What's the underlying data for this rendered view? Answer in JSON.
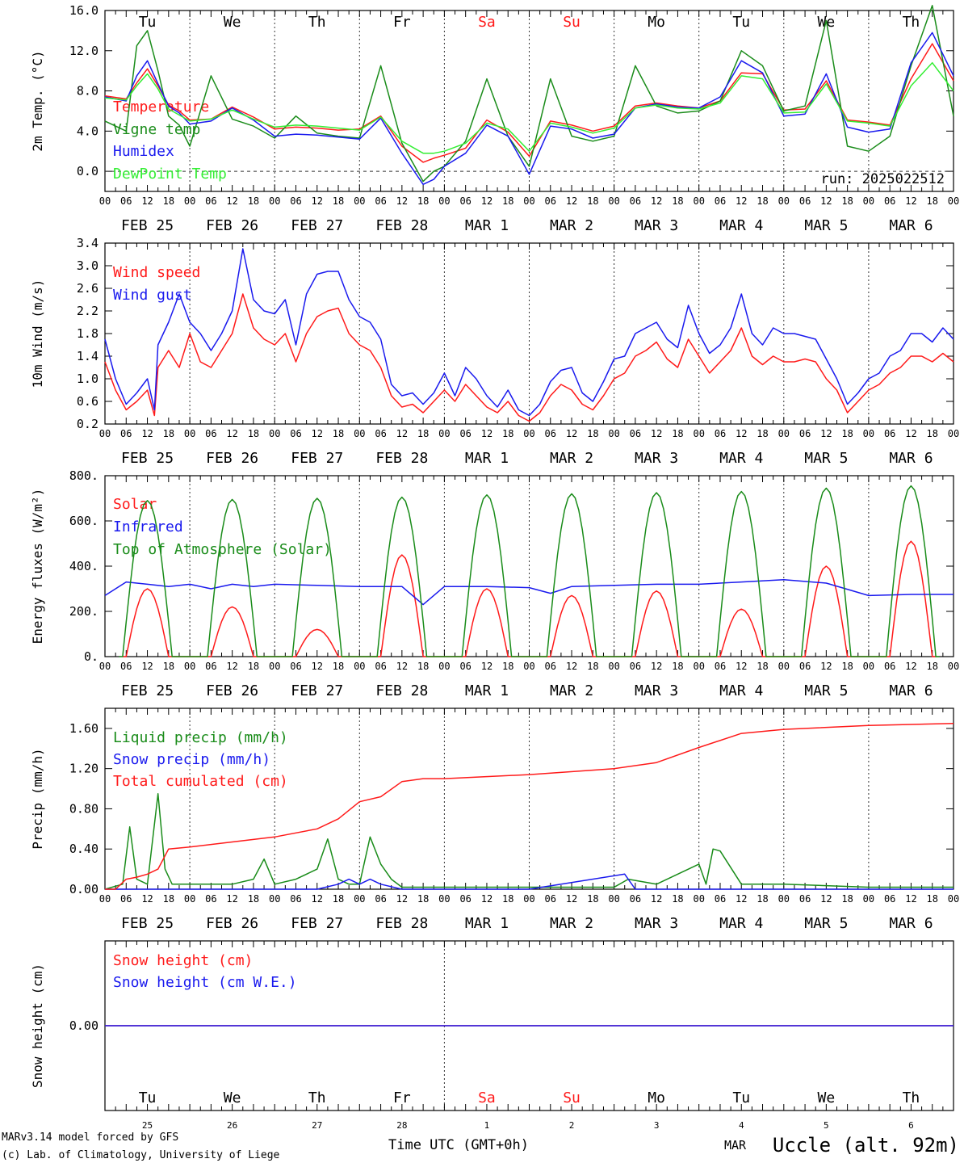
{
  "colors": {
    "red": "#ff1a1a",
    "green": "#1a8c1a",
    "blue": "#1a1aee",
    "lightgreen": "#33ee33",
    "axis": "#000000"
  },
  "time_axis": {
    "hour_ticks": [
      "00",
      "06",
      "12",
      "18"
    ],
    "date_labels": [
      "FEB 25",
      "FEB 26",
      "FEB 27",
      "FEB 28",
      "MAR  1",
      "MAR  2",
      "MAR  3",
      "MAR  4",
      "MAR  5",
      "MAR  6"
    ],
    "day_names": [
      "Tu",
      "We",
      "Th",
      "Fr",
      "Sa",
      "Su",
      "Mo",
      "Tu",
      "We",
      "Th"
    ],
    "weekend_days": [
      4,
      5
    ],
    "bottom_day_numbers": [
      "25",
      "26",
      "27",
      "28",
      "1",
      "2",
      "3",
      "4",
      "5",
      "6"
    ],
    "xlabel": "Time UTC (GMT+0h)",
    "month_label": "MAR"
  },
  "footer": {
    "credit_1": "MARv3.14 model forced by GFS",
    "credit_2": "(c) Lab. of Climatology, University of Liege",
    "station": "Uccle (alt. 92m)"
  },
  "chart_data": [
    {
      "type": "line",
      "id": "temperature",
      "ylabel": "2m Temp. (°C)",
      "ylim": [
        -2,
        16
      ],
      "yticks": [
        0.0,
        4.0,
        8.0,
        12.0,
        16.0
      ],
      "ytick_labels": [
        "0.0",
        "4.0",
        "8.0",
        "12.0",
        "16.0"
      ],
      "run_label": "run: 2025022512",
      "x_hours_from_feb25_00": [
        0,
        6,
        9,
        12,
        15,
        18,
        21,
        24,
        30,
        36,
        42,
        48,
        54,
        60,
        66,
        72,
        78,
        84,
        90,
        93,
        96,
        102,
        108,
        114,
        120,
        126,
        132,
        138,
        144,
        150,
        156,
        162,
        168,
        174,
        180,
        186,
        192,
        198,
        204,
        210,
        216,
        222,
        228,
        234,
        240
      ],
      "series": [
        {
          "name": "Temperature",
          "color": "red",
          "values": [
            7.5,
            7.2,
            8.8,
            10.2,
            8.5,
            6.6,
            6.0,
            5.1,
            5.2,
            6.4,
            5.4,
            4.2,
            4.4,
            4.3,
            4.1,
            4.2,
            5.5,
            2.5,
            0.9,
            1.3,
            1.6,
            2.3,
            5.1,
            3.9,
            1.5,
            5.0,
            4.6,
            4.0,
            4.5,
            6.5,
            6.8,
            6.5,
            6.3,
            7.0,
            9.8,
            9.7,
            6.1,
            6.2,
            9.0,
            5.1,
            4.9,
            4.6,
            9.2,
            12.7,
            9.0
          ]
        },
        {
          "name": "Vigne temp",
          "color": "green",
          "values": [
            5.0,
            4.0,
            12.5,
            14.0,
            10.0,
            5.5,
            4.6,
            2.5,
            9.5,
            5.2,
            4.5,
            3.3,
            5.5,
            3.8,
            3.5,
            3.3,
            10.5,
            2.8,
            -1.0,
            0.0,
            0.5,
            3.0,
            9.2,
            3.5,
            0.5,
            9.2,
            3.5,
            3.0,
            3.5,
            10.5,
            6.5,
            5.8,
            6.0,
            7.0,
            12.0,
            10.5,
            6.0,
            6.5,
            15.0,
            2.5,
            2.0,
            3.5,
            10.5,
            16.5,
            5.5
          ]
        },
        {
          "name": "Humidex",
          "color": "blue",
          "values": [
            7.4,
            7.0,
            9.5,
            11.0,
            8.7,
            6.5,
            5.8,
            4.7,
            5.0,
            6.3,
            5.1,
            3.5,
            3.7,
            3.6,
            3.4,
            3.2,
            5.3,
            1.8,
            -1.3,
            -0.8,
            0.5,
            1.8,
            4.6,
            3.5,
            -0.3,
            4.5,
            4.2,
            3.3,
            3.7,
            6.3,
            6.7,
            6.4,
            6.3,
            7.4,
            11.0,
            9.8,
            5.5,
            5.7,
            9.7,
            4.4,
            3.9,
            4.2,
            10.8,
            13.8,
            9.5
          ]
        },
        {
          "name": "DewPoint Temp",
          "color": "lightgreen",
          "values": [
            7.3,
            7.1,
            8.5,
            9.7,
            8.2,
            6.2,
            5.6,
            5.0,
            5.2,
            6.1,
            5.2,
            4.4,
            4.6,
            4.5,
            4.3,
            4.1,
            5.4,
            3.0,
            1.8,
            1.8,
            2.0,
            2.8,
            4.8,
            4.2,
            2.0,
            4.8,
            4.4,
            3.8,
            4.3,
            6.3,
            6.6,
            6.3,
            6.2,
            6.8,
            9.5,
            9.2,
            5.8,
            5.9,
            8.7,
            5.0,
            4.8,
            4.5,
            8.5,
            10.8,
            8.0
          ]
        }
      ]
    },
    {
      "type": "line",
      "id": "wind",
      "ylabel": "10m Wind (m/s)",
      "ylim": [
        0.2,
        3.4
      ],
      "yticks": [
        0.2,
        0.6,
        1.0,
        1.4,
        1.8,
        2.2,
        2.6,
        3.0,
        3.4
      ],
      "ytick_labels": [
        "0.2",
        "0.6",
        "1.0",
        "1.4",
        "1.8",
        "2.2",
        "2.6",
        "3.0",
        "3.4"
      ],
      "x_hours_from_feb25_00": [
        0,
        3,
        6,
        9,
        12,
        14,
        15,
        18,
        21,
        24,
        27,
        30,
        33,
        36,
        39,
        42,
        45,
        48,
        51,
        54,
        57,
        60,
        63,
        66,
        69,
        72,
        75,
        78,
        81,
        84,
        87,
        90,
        93,
        96,
        99,
        102,
        105,
        108,
        111,
        114,
        117,
        120,
        123,
        126,
        129,
        132,
        135,
        138,
        141,
        144,
        147,
        150,
        153,
        156,
        159,
        162,
        165,
        168,
        171,
        174,
        177,
        180,
        183,
        186,
        189,
        192,
        195,
        198,
        201,
        204,
        207,
        210,
        213,
        216,
        219,
        222,
        225,
        228,
        231,
        234,
        237,
        240
      ],
      "series": [
        {
          "name": "Wind speed",
          "color": "red",
          "values": [
            1.3,
            0.8,
            0.45,
            0.6,
            0.8,
            0.35,
            1.2,
            1.5,
            1.2,
            1.8,
            1.3,
            1.2,
            1.5,
            1.8,
            2.5,
            1.9,
            1.7,
            1.6,
            1.8,
            1.3,
            1.8,
            2.1,
            2.2,
            2.25,
            1.8,
            1.6,
            1.5,
            1.2,
            0.7,
            0.5,
            0.55,
            0.4,
            0.6,
            0.8,
            0.6,
            0.9,
            0.7,
            0.5,
            0.4,
            0.6,
            0.35,
            0.25,
            0.4,
            0.7,
            0.9,
            0.8,
            0.55,
            0.45,
            0.7,
            1.0,
            1.1,
            1.4,
            1.5,
            1.65,
            1.35,
            1.2,
            1.7,
            1.4,
            1.1,
            1.3,
            1.5,
            1.9,
            1.4,
            1.25,
            1.4,
            1.3,
            1.3,
            1.35,
            1.3,
            1.0,
            0.8,
            0.4,
            0.6,
            0.8,
            0.9,
            1.1,
            1.2,
            1.4,
            1.4,
            1.3,
            1.45,
            1.3
          ]
        },
        {
          "name": "Wind gust",
          "color": "blue",
          "values": [
            1.7,
            1.0,
            0.55,
            0.75,
            1.0,
            0.45,
            1.6,
            2.0,
            2.5,
            2.0,
            1.8,
            1.5,
            1.8,
            2.2,
            3.3,
            2.4,
            2.2,
            2.15,
            2.4,
            1.6,
            2.5,
            2.85,
            2.9,
            2.9,
            2.4,
            2.1,
            2.0,
            1.7,
            0.9,
            0.7,
            0.75,
            0.55,
            0.75,
            1.1,
            0.7,
            1.2,
            1.0,
            0.7,
            0.5,
            0.8,
            0.45,
            0.35,
            0.55,
            0.95,
            1.15,
            1.2,
            0.75,
            0.6,
            0.95,
            1.35,
            1.4,
            1.8,
            1.9,
            2.0,
            1.7,
            1.55,
            2.3,
            1.8,
            1.45,
            1.6,
            1.9,
            2.5,
            1.8,
            1.6,
            1.9,
            1.8,
            1.8,
            1.75,
            1.7,
            1.35,
            1.0,
            0.55,
            0.75,
            1.0,
            1.1,
            1.4,
            1.5,
            1.8,
            1.8,
            1.65,
            1.9,
            1.7
          ]
        }
      ]
    },
    {
      "type": "line",
      "id": "energy",
      "ylabel": "Energy fluxes (W/m²)",
      "ylim": [
        0,
        800
      ],
      "yticks": [
        0,
        200,
        400,
        600,
        800
      ],
      "ytick_labels": [
        "0.",
        "200.",
        "400.",
        "600.",
        "800."
      ],
      "series": [
        {
          "name": "Solar",
          "color": "red",
          "daily_peaks": [
            300,
            220,
            120,
            450,
            300,
            270,
            290,
            210,
            400,
            510
          ],
          "peak_hour": 12,
          "half_width_hours": 6
        },
        {
          "name": "Infrared",
          "color": "blue",
          "x_hours_from_feb25_00": [
            0,
            6,
            12,
            18,
            24,
            30,
            36,
            42,
            48,
            60,
            72,
            84,
            90,
            96,
            108,
            120,
            126,
            132,
            144,
            156,
            168,
            180,
            192,
            204,
            216,
            228,
            234,
            240
          ],
          "values": [
            270,
            330,
            320,
            310,
            320,
            300,
            320,
            310,
            320,
            315,
            310,
            310,
            230,
            310,
            310,
            305,
            280,
            310,
            315,
            320,
            320,
            330,
            340,
            325,
            270,
            275,
            275,
            275
          ]
        },
        {
          "name": "Top of Atmosphere (Solar)",
          "color": "green",
          "daily_peaks": [
            690,
            695,
            700,
            705,
            715,
            720,
            725,
            730,
            745,
            755
          ],
          "peak_hour": 12,
          "half_width_hours": 7
        }
      ]
    },
    {
      "type": "line",
      "id": "precip",
      "ylabel": "Precip (mm/h)",
      "ylim": [
        0,
        1.8
      ],
      "yticks": [
        0.0,
        0.4,
        0.8,
        1.2,
        1.6
      ],
      "ytick_labels": [
        "0.00",
        "0.40",
        "0.80",
        "1.20",
        "1.60"
      ],
      "series": [
        {
          "name": "Liquid precip (mm/h)",
          "color": "green",
          "x_hours_from_feb25_00": [
            0,
            5,
            7,
            9,
            12,
            15,
            17,
            19,
            24,
            36,
            42,
            45,
            48,
            54,
            60,
            63,
            66,
            69,
            72,
            75,
            78,
            81,
            84,
            96,
            144,
            148,
            156,
            168,
            170,
            172,
            174,
            180,
            192,
            216,
            240
          ],
          "values": [
            0,
            0.05,
            0.62,
            0.1,
            0.05,
            0.95,
            0.2,
            0.05,
            0.05,
            0.05,
            0.1,
            0.3,
            0.05,
            0.1,
            0.2,
            0.5,
            0.1,
            0.05,
            0.05,
            0.52,
            0.25,
            0.1,
            0.02,
            0.02,
            0.02,
            0.1,
            0.05,
            0.25,
            0.05,
            0.4,
            0.38,
            0.05,
            0.05,
            0.02,
            0.02
          ]
        },
        {
          "name": "Snow precip (mm/h)",
          "color": "blue",
          "x_hours_from_feb25_00": [
            0,
            60,
            66,
            69,
            72,
            75,
            78,
            84,
            120,
            147,
            150,
            240
          ],
          "values": [
            0,
            0,
            0.05,
            0.1,
            0.05,
            0.1,
            0.05,
            0,
            0,
            0.15,
            0,
            0
          ]
        },
        {
          "name": "Total cumulated (cm)",
          "color": "red",
          "x_hours_from_feb25_00": [
            0,
            3,
            6,
            9,
            12,
            15,
            18,
            24,
            36,
            48,
            60,
            66,
            72,
            78,
            84,
            90,
            96,
            120,
            144,
            156,
            168,
            180,
            192,
            216,
            240
          ],
          "values": [
            0,
            0,
            0.1,
            0.12,
            0.15,
            0.2,
            0.4,
            0.42,
            0.47,
            0.52,
            0.6,
            0.7,
            0.87,
            0.92,
            1.07,
            1.1,
            1.1,
            1.14,
            1.2,
            1.26,
            1.41,
            1.55,
            1.59,
            1.63,
            1.65
          ]
        }
      ]
    },
    {
      "type": "line",
      "id": "snow",
      "ylabel": "Snow height (cm)",
      "ylim": [
        -1,
        1
      ],
      "yticks": [
        0.0
      ],
      "ytick_labels": [
        "0.00"
      ],
      "series": [
        {
          "name": "Snow height (cm)",
          "color": "red",
          "values": [
            0.0,
            0.0
          ]
        },
        {
          "name": "Snow height (cm W.E.)",
          "color": "blue",
          "values": [
            0.0,
            0.0
          ]
        }
      ]
    }
  ]
}
